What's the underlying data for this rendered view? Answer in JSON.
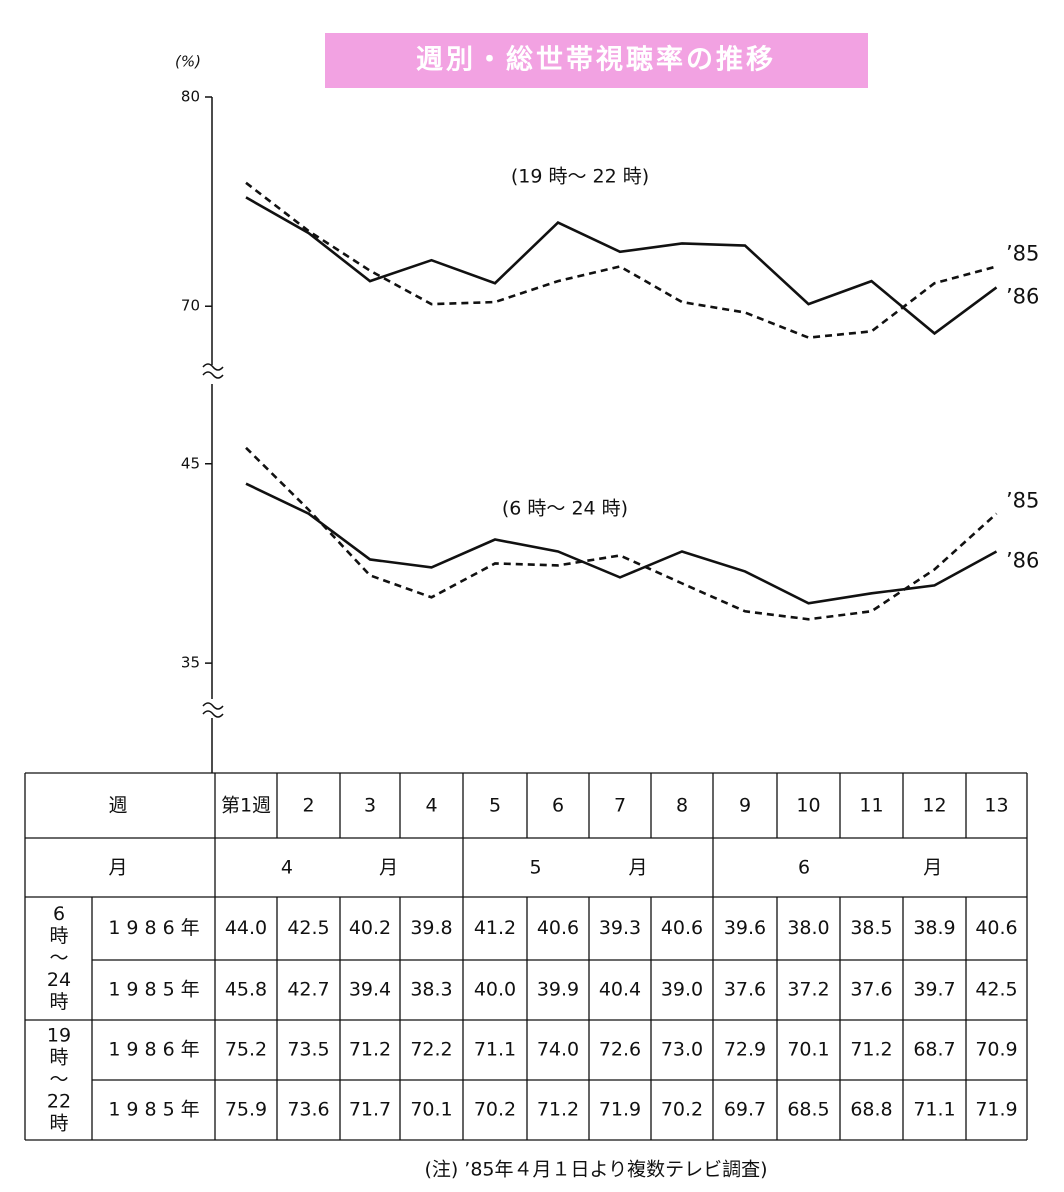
{
  "title": "週別・総世帯視聴率の推移",
  "y_unit": "(%)",
  "chart_data": [
    {
      "type": "line",
      "subtitle": "(19 時～ 22 時)",
      "categories": [
        "第1週",
        "2",
        "3",
        "4",
        "5",
        "6",
        "7",
        "8",
        "9",
        "10",
        "11",
        "12",
        "13"
      ],
      "ylim": [
        67,
        80
      ],
      "yticks": [
        70,
        80
      ],
      "series": [
        {
          "name": "’86",
          "color": "#111111",
          "line_style": "solid",
          "values": [
            75.2,
            73.5,
            71.2,
            72.2,
            71.1,
            74.0,
            72.6,
            73.0,
            72.9,
            70.1,
            71.2,
            68.7,
            70.9
          ],
          "value_labels": [
            "75.2",
            "73.5",
            "71.2",
            "72.2",
            "71.1",
            "74.0",
            "72.6",
            "73.0",
            "72.9",
            "70.1",
            "71.2",
            "68.7",
            "70.9"
          ]
        },
        {
          "name": "’85",
          "color": "#111111",
          "line_style": "dashed",
          "values": [
            75.9,
            73.6,
            71.7,
            70.1,
            70.2,
            71.2,
            71.9,
            70.2,
            69.7,
            68.5,
            68.8,
            71.1,
            71.9
          ],
          "value_labels": [
            "75.9",
            "73.6",
            "71.7",
            "70.1",
            "70.2",
            "71.2",
            "71.9",
            "70.2",
            "69.7",
            "68.5",
            "68.8",
            "71.1",
            "71.9"
          ]
        }
      ]
    },
    {
      "type": "line",
      "subtitle": "(6 時～ 24 時)",
      "categories": [
        "第1週",
        "2",
        "3",
        "4",
        "5",
        "6",
        "7",
        "8",
        "9",
        "10",
        "11",
        "12",
        "13"
      ],
      "ylim": [
        33,
        49
      ],
      "yticks": [
        35,
        45
      ],
      "series": [
        {
          "name": "’86",
          "color": "#111111",
          "line_style": "solid",
          "values": [
            44.0,
            42.5,
            40.2,
            39.8,
            41.2,
            40.6,
            39.3,
            40.6,
            39.6,
            38.0,
            38.5,
            38.9,
            40.6
          ],
          "value_labels": [
            "44.0",
            "42.5",
            "40.2",
            "39.8",
            "41.2",
            "40.6",
            "39.3",
            "40.6",
            "39.6",
            "38.0",
            "38.5",
            "38.9",
            "40.6"
          ]
        },
        {
          "name": "’85",
          "color": "#111111",
          "line_style": "dashed",
          "values": [
            45.8,
            42.7,
            39.4,
            38.3,
            40.0,
            39.9,
            40.4,
            39.0,
            37.6,
            37.2,
            37.6,
            39.7,
            42.5
          ],
          "value_labels": [
            "45.8",
            "42.7",
            "39.4",
            "38.3",
            "40.0",
            "39.9",
            "40.4",
            "39.0",
            "37.6",
            "37.2",
            "37.6",
            "39.7",
            "42.5"
          ]
        }
      ]
    }
  ],
  "table": {
    "week_header": "週",
    "month_header": "月",
    "months": [
      "4",
      "5",
      "6"
    ],
    "month_unit": "月",
    "years": [
      "1986年",
      "1985年"
    ],
    "groups": [
      [
        "6",
        "時",
        "～",
        "24",
        "時"
      ],
      [
        "19",
        "時",
        "～",
        "22",
        "時"
      ]
    ]
  },
  "note": "(注) ’85年４月１日より複数テレビ調査)"
}
